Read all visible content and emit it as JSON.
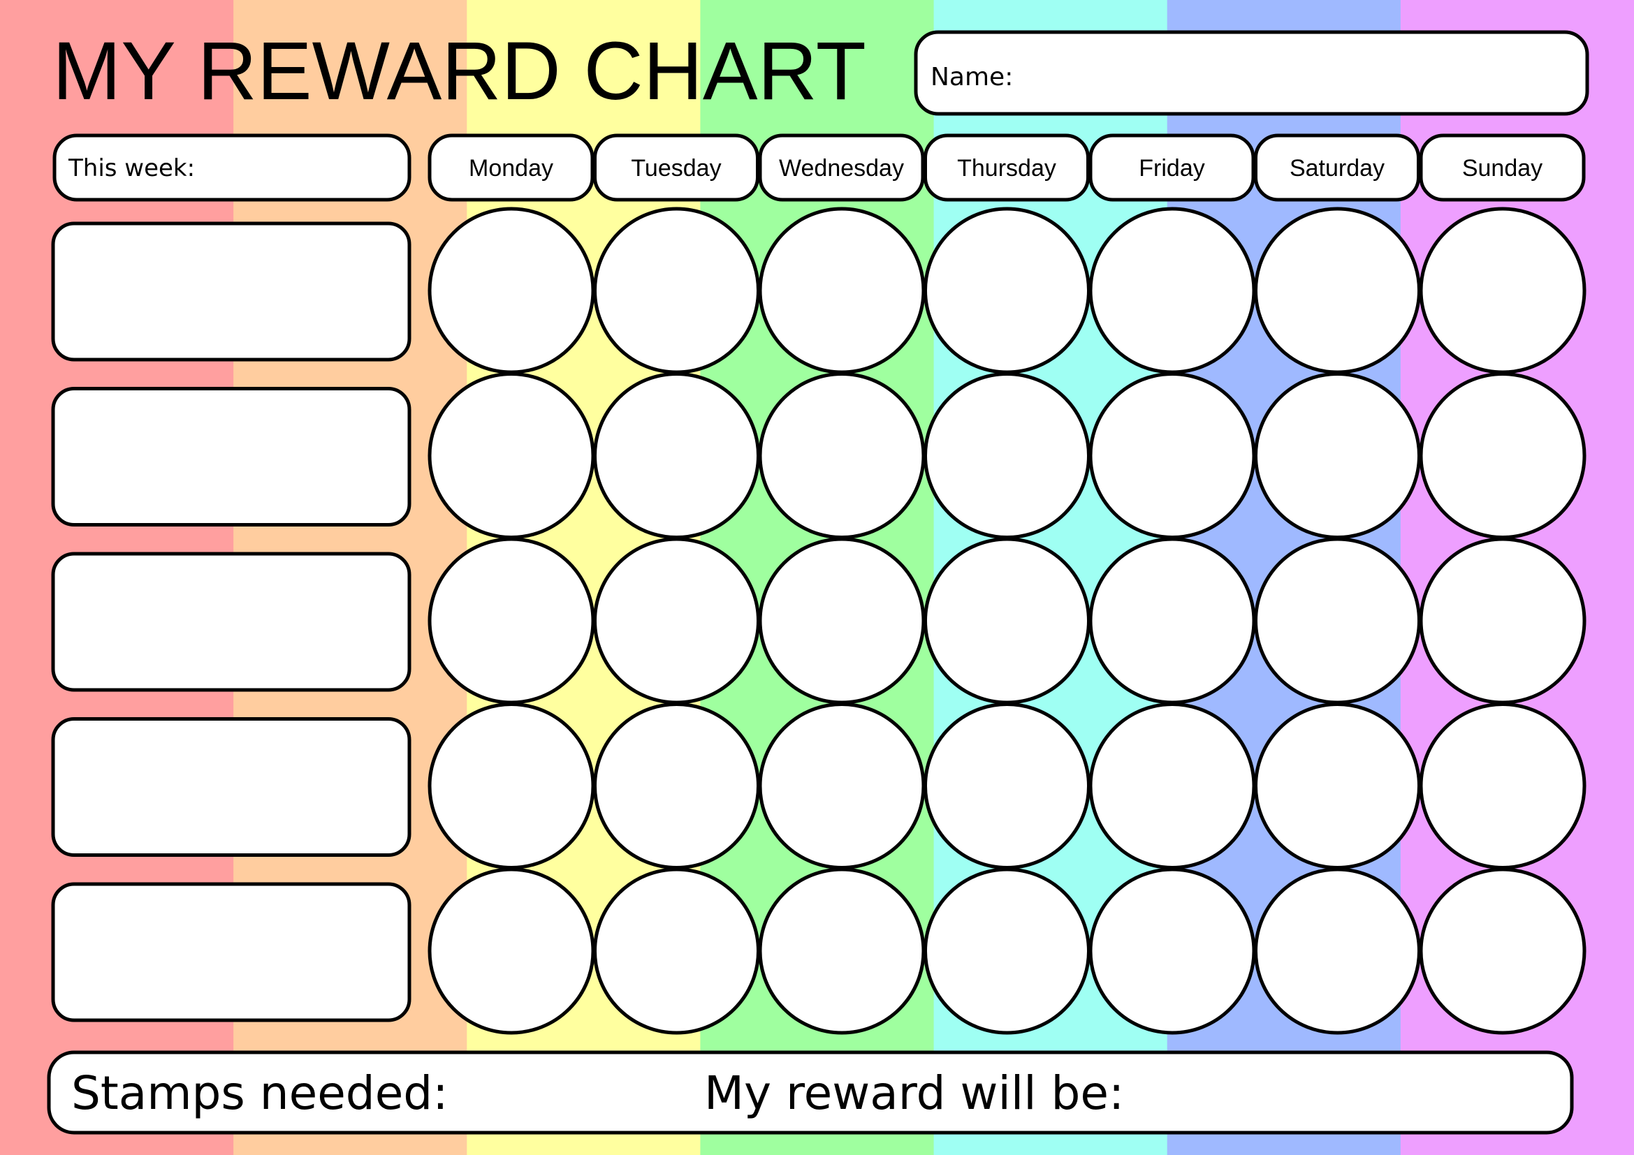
{
  "title": "MY REWARD CHART",
  "name_label": "Name:",
  "this_week_label": "This week:",
  "days": [
    "Monday",
    "Tuesday",
    "Wednesday",
    "Thursday",
    "Friday",
    "Saturday",
    "Sunday"
  ],
  "task_rows": 5,
  "footer": {
    "stamps_label": "Stamps needed:",
    "reward_label": "My reward will be:"
  },
  "stripe_colors": [
    "#ff9f9f",
    "#ffcd9f",
    "#ffff9f",
    "#9fff9f",
    "#9ffff3",
    "#9fb9ff",
    "#ee9fff"
  ]
}
